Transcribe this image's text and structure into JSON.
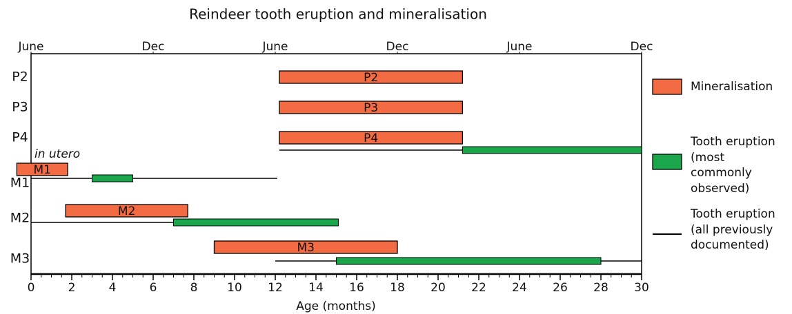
{
  "chart_data": {
    "type": "range",
    "title": "Reindeer tooth eruption and mineralisation",
    "xlabel": "Age (months)",
    "annotation": "in utero",
    "categories": [
      "P2",
      "P3",
      "P4",
      "M1",
      "M2",
      "M3"
    ],
    "series": [
      {
        "name": "Mineralisation",
        "color": "#f26b43",
        "style": "bar",
        "starts": [
          12.2,
          12.2,
          12.2,
          -0.7,
          1.7,
          9
        ],
        "ends": [
          21.2,
          21.2,
          21.2,
          1.8,
          7.7,
          18
        ]
      },
      {
        "name": "Tooth eruption (most commonly observed)",
        "color": "#1aa64b",
        "style": "thin-bar",
        "starts": [
          null,
          null,
          21.2,
          3,
          7,
          15
        ],
        "ends": [
          null,
          null,
          30,
          5,
          15.1,
          28
        ]
      },
      {
        "name": "Tooth eruption (all previously documented)",
        "color": "#000000",
        "style": "line",
        "starts": [
          null,
          null,
          12.2,
          0,
          0,
          12
        ],
        "ends": [
          null,
          null,
          21.2,
          12.1,
          7,
          30
        ]
      }
    ],
    "xlim": [
      0,
      30
    ],
    "xticks": [
      0,
      2,
      4,
      6,
      8,
      10,
      12,
      14,
      16,
      18,
      20,
      22,
      24,
      26,
      28,
      30
    ],
    "x2ticks": [
      {
        "value": 0,
        "label": "June"
      },
      {
        "value": 6,
        "label": "Dec"
      },
      {
        "value": 12,
        "label": "June"
      },
      {
        "value": 18,
        "label": "Dec"
      },
      {
        "value": 24,
        "label": "June"
      },
      {
        "value": 30,
        "label": "Dec"
      }
    ]
  }
}
